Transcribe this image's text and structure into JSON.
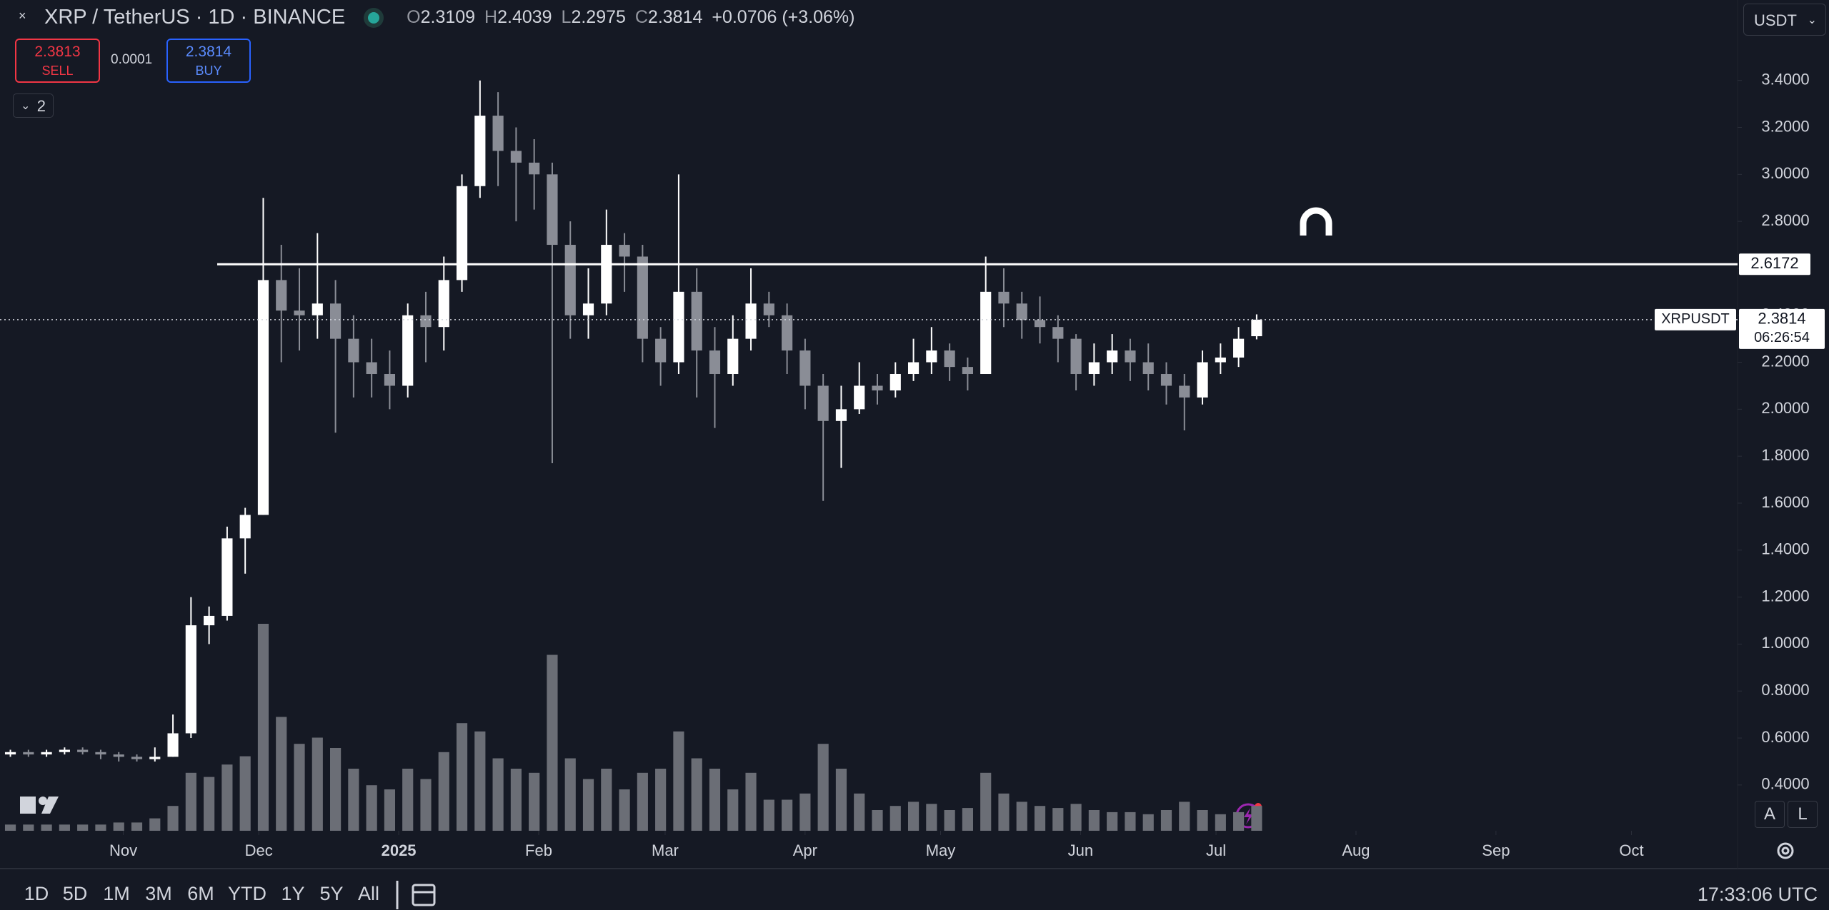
{
  "header": {
    "symbol": "XRP / TetherUS · 1D · BINANCE",
    "open_label": "O",
    "open": "2.3109",
    "high_label": "H",
    "high": "2.4039",
    "low_label": "L",
    "low": "2.2975",
    "close_label": "C",
    "close": "2.3814",
    "change": "+0.0706 (+3.06%)"
  },
  "trade": {
    "sell_price": "2.3813",
    "sell": "SELL",
    "spread": "0.0001",
    "buy_price": "2.3814",
    "buy": "BUY"
  },
  "indicators_count": "2",
  "currency": "USDT",
  "chart_data": {
    "type": "candlestick",
    "x": [
      1,
      5,
      9,
      13,
      17,
      21,
      25,
      29,
      33,
      37,
      41,
      45,
      49,
      53,
      57,
      61,
      65,
      69,
      73,
      77,
      81,
      85,
      89,
      93,
      97,
      101,
      105,
      109,
      113,
      117,
      121,
      125,
      129,
      133,
      137,
      141,
      145,
      149,
      153,
      157,
      161,
      165,
      169,
      173,
      177,
      181,
      185,
      189,
      193,
      197,
      201,
      205,
      209,
      213,
      217,
      221,
      225,
      229,
      233,
      237,
      241,
      245,
      249,
      253,
      257,
      261,
      265,
      269,
      273,
      277
    ],
    "open": [
      0.53,
      0.54,
      0.53,
      0.54,
      0.55,
      0.54,
      0.53,
      0.52,
      0.51,
      0.52,
      0.62,
      1.08,
      1.12,
      1.45,
      1.55,
      2.55,
      2.42,
      2.4,
      2.45,
      2.3,
      2.2,
      2.15,
      2.1,
      2.4,
      2.35,
      2.55,
      2.95,
      3.25,
      3.1,
      3.05,
      3.0,
      2.7,
      2.4,
      2.45,
      2.7,
      2.65,
      2.3,
      2.2,
      2.5,
      2.25,
      2.15,
      2.3,
      2.45,
      2.4,
      2.25,
      2.1,
      1.95,
      2.0,
      2.1,
      2.08,
      2.15,
      2.2,
      2.25,
      2.18,
      2.15,
      2.5,
      2.45,
      2.38,
      2.35,
      2.3,
      2.15,
      2.2,
      2.25,
      2.2,
      2.15,
      2.1,
      2.05,
      2.2,
      2.22,
      2.3109
    ],
    "high": [
      0.55,
      0.55,
      0.55,
      0.56,
      0.56,
      0.55,
      0.54,
      0.53,
      0.56,
      0.7,
      1.2,
      1.16,
      1.5,
      1.58,
      2.9,
      2.7,
      2.6,
      2.75,
      2.55,
      2.4,
      2.3,
      2.25,
      2.45,
      2.5,
      2.65,
      3.0,
      3.4,
      3.35,
      3.2,
      3.15,
      3.05,
      2.8,
      2.6,
      2.85,
      2.75,
      2.7,
      2.35,
      3.0,
      2.6,
      2.35,
      2.4,
      2.6,
      2.5,
      2.45,
      2.3,
      2.15,
      2.1,
      2.2,
      2.15,
      2.2,
      2.3,
      2.35,
      2.28,
      2.22,
      2.65,
      2.6,
      2.5,
      2.48,
      2.4,
      2.32,
      2.28,
      2.32,
      2.3,
      2.28,
      2.2,
      2.15,
      2.25,
      2.28,
      2.35,
      2.4039
    ],
    "low": [
      0.52,
      0.52,
      0.52,
      0.53,
      0.53,
      0.51,
      0.5,
      0.5,
      0.5,
      0.52,
      0.6,
      1.0,
      1.1,
      1.3,
      1.55,
      2.2,
      2.25,
      2.3,
      1.9,
      2.05,
      2.05,
      2.0,
      2.05,
      2.2,
      2.25,
      2.5,
      2.9,
      2.95,
      2.8,
      2.85,
      1.77,
      2.3,
      2.3,
      2.4,
      2.5,
      2.2,
      2.1,
      2.15,
      2.05,
      1.92,
      2.1,
      2.25,
      2.35,
      2.15,
      2.0,
      1.61,
      1.75,
      1.98,
      2.02,
      2.05,
      2.12,
      2.15,
      2.12,
      2.08,
      2.15,
      2.35,
      2.3,
      2.28,
      2.2,
      2.08,
      2.1,
      2.15,
      2.12,
      2.08,
      2.02,
      1.91,
      2.02,
      2.15,
      2.18,
      2.2975
    ],
    "close": [
      0.54,
      0.53,
      0.54,
      0.55,
      0.54,
      0.53,
      0.52,
      0.51,
      0.52,
      0.62,
      1.08,
      1.12,
      1.45,
      1.55,
      2.55,
      2.42,
      2.4,
      2.45,
      2.3,
      2.2,
      2.15,
      2.1,
      2.4,
      2.35,
      2.55,
      2.95,
      3.25,
      3.1,
      3.05,
      3.0,
      2.7,
      2.4,
      2.45,
      2.7,
      2.65,
      2.3,
      2.2,
      2.5,
      2.25,
      2.15,
      2.3,
      2.45,
      2.4,
      2.25,
      2.1,
      1.95,
      2.0,
      2.1,
      2.08,
      2.15,
      2.2,
      2.25,
      2.18,
      2.15,
      2.5,
      2.45,
      2.38,
      2.35,
      2.3,
      2.15,
      2.2,
      2.25,
      2.2,
      2.15,
      2.1,
      2.05,
      2.2,
      2.22,
      2.3,
      2.3814
    ],
    "volume": [
      3,
      3,
      3,
      3,
      3,
      3,
      4,
      4,
      6,
      12,
      28,
      26,
      32,
      36,
      100,
      55,
      42,
      45,
      40,
      30,
      22,
      20,
      30,
      25,
      38,
      52,
      48,
      35,
      30,
      28,
      85,
      35,
      25,
      30,
      20,
      28,
      30,
      48,
      35,
      30,
      20,
      28,
      15,
      15,
      18,
      42,
      30,
      18,
      10,
      12,
      14,
      13,
      10,
      11,
      28,
      18,
      14,
      12,
      11,
      13,
      10,
      9,
      9,
      8,
      10,
      14,
      10,
      8,
      9,
      12
    ],
    "up_color": "#ffffff",
    "down_color": "#8a8d96",
    "volume_color": "#6b6e76",
    "xlim": [
      -1.3,
      383.5
    ],
    "xticks": [
      {
        "value": 26,
        "label": "Nov"
      },
      {
        "value": 56,
        "label": "Dec"
      },
      {
        "value": 87,
        "label": "2025"
      },
      {
        "value": 118,
        "label": "Feb"
      },
      {
        "value": 146,
        "label": "Mar"
      },
      {
        "value": 177,
        "label": "Apr"
      },
      {
        "value": 207,
        "label": "May"
      },
      {
        "value": 238,
        "label": "Jun"
      },
      {
        "value": 268,
        "label": "Jul"
      },
      {
        "value": 299,
        "label": "Aug"
      },
      {
        "value": 330,
        "label": "Sep"
      },
      {
        "value": 360,
        "label": "Oct"
      }
    ],
    "ylim": [
      0.205,
      3.7425
    ],
    "yticks": [
      {
        "value": 0.4,
        "label": "0.4000"
      },
      {
        "value": 0.6,
        "label": "0.6000"
      },
      {
        "value": 0.8,
        "label": "0.8000"
      },
      {
        "value": 1.0,
        "label": "1.0000"
      },
      {
        "value": 1.2,
        "label": "1.2000"
      },
      {
        "value": 1.4,
        "label": "1.4000"
      },
      {
        "value": 1.6,
        "label": "1.6000"
      },
      {
        "value": 1.8,
        "label": "1.8000"
      },
      {
        "value": 2.0,
        "label": "2.0000"
      },
      {
        "value": 2.2,
        "label": "2.2000"
      },
      {
        "value": 2.4,
        "label": "2.4000"
      },
      {
        "value": 2.6,
        "label": "2.6000"
      },
      {
        "value": 2.8,
        "label": "2.8000"
      },
      {
        "value": 3.0,
        "label": "3.0000"
      },
      {
        "value": 3.2,
        "label": "3.2000"
      },
      {
        "value": 3.4,
        "label": "3.4000"
      }
    ],
    "grid": false,
    "hline": {
      "value": 2.6172,
      "color": "#ffffff"
    },
    "last": {
      "symbol": "XRPUSDT",
      "price": 2.3814,
      "countdown": "06:26:54"
    }
  },
  "toolbar": {
    "ranges": [
      "1D",
      "5D",
      "1M",
      "3M",
      "6M",
      "YTD",
      "1Y",
      "5Y",
      "All"
    ],
    "time": "17:33:06 UTC",
    "auto": "A",
    "log": "L"
  }
}
